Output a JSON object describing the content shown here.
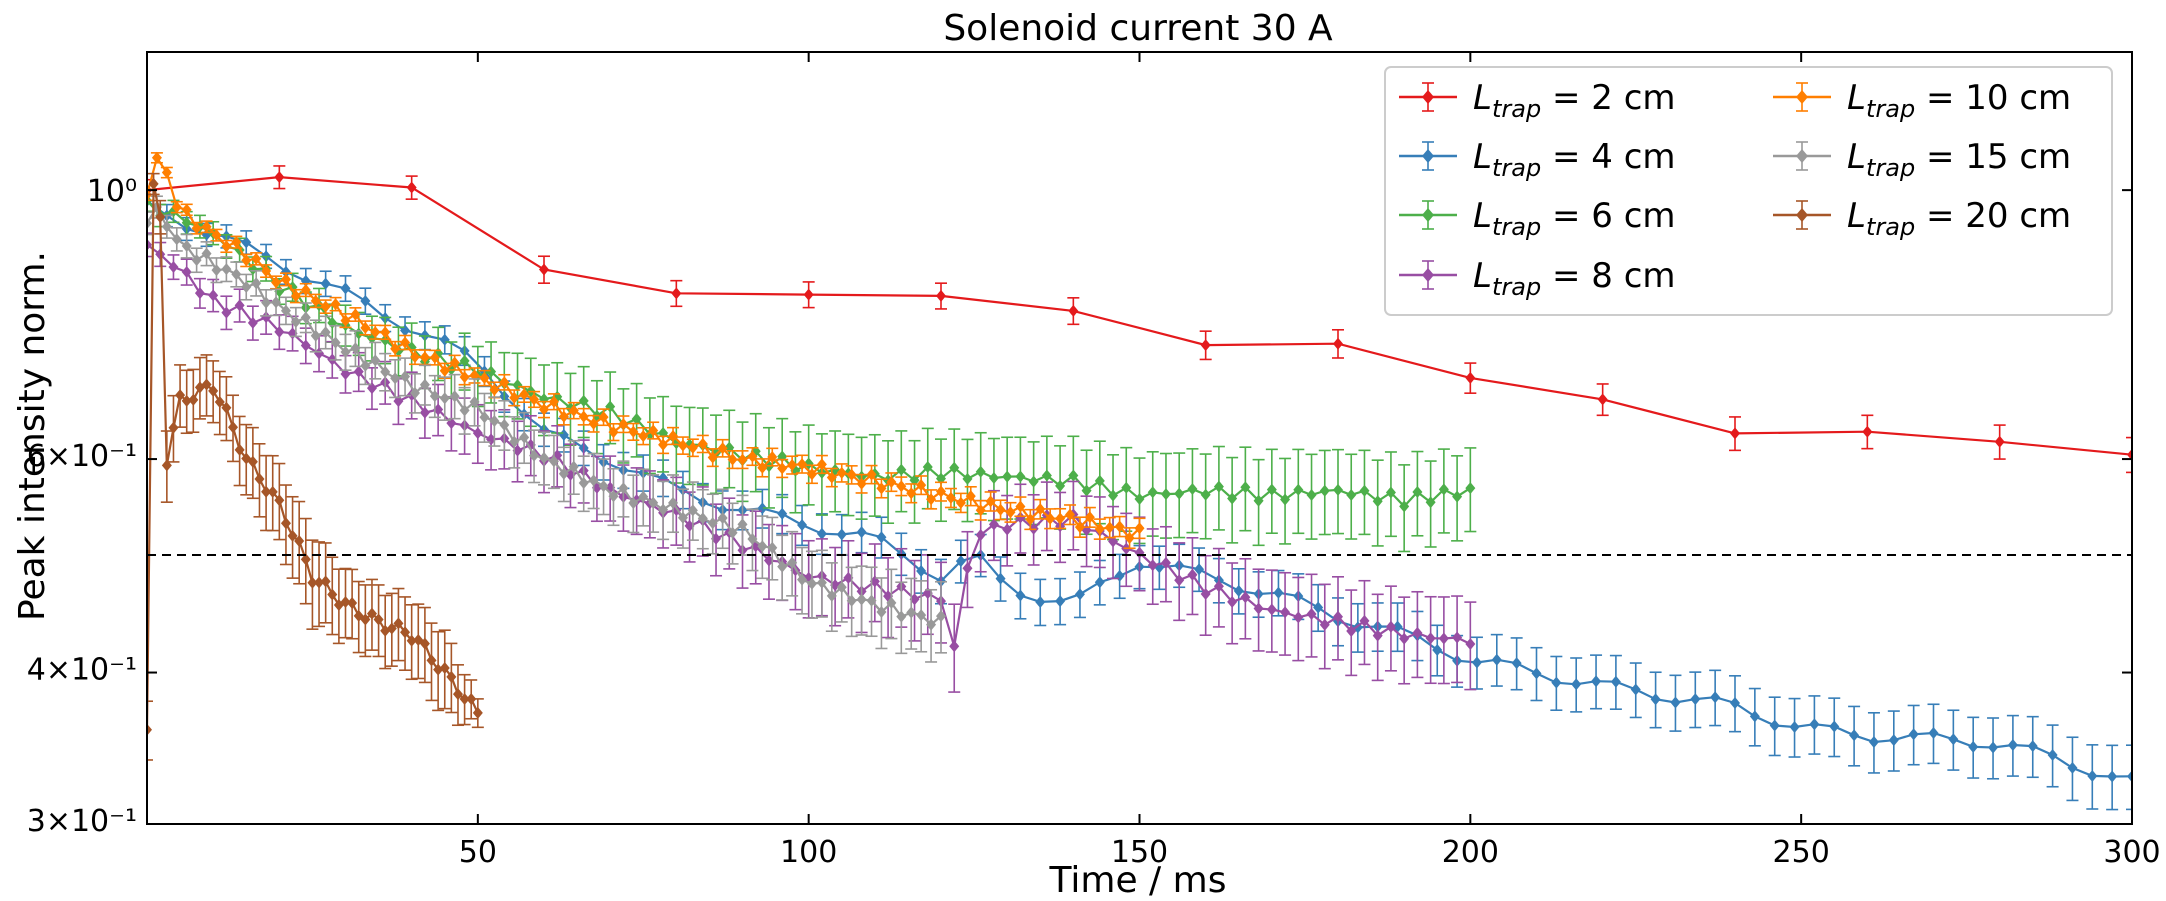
{
  "chart_data": {
    "type": "line",
    "title": "Solenoid current 30 A",
    "xlabel": "Time / ms",
    "ylabel": "Peak intensity norm.",
    "xlim": [
      0,
      300
    ],
    "ylim": [
      0.3,
      1.3
    ],
    "y_scale": "log",
    "x_ticks": [
      50,
      100,
      150,
      200,
      250,
      300
    ],
    "x_tick_labels": [
      "50",
      "100",
      "150",
      "200",
      "250",
      "300"
    ],
    "y_ticks": [
      0.3,
      0.4,
      0.6,
      1.0
    ],
    "y_tick_labels": [
      "3×10⁻¹",
      "4×10⁻¹",
      "6×10⁻¹",
      "10⁰"
    ],
    "reference_line": {
      "y": 0.5,
      "style": "dashed",
      "color": "#000000"
    },
    "legend": {
      "placement": "top-right",
      "columns": 2
    },
    "series": [
      {
        "name": "L_trap = 2 cm",
        "label_main": "L",
        "label_sub": "trap",
        "label_value": " = 2 cm",
        "color": "#e41a1c",
        "step": 20,
        "x": [
          0,
          20,
          40,
          60,
          80,
          100,
          120,
          140,
          160,
          180,
          200,
          220,
          240,
          260,
          280,
          300
        ],
        "y": [
          1.0,
          1.025,
          1.005,
          0.86,
          0.822,
          0.82,
          0.818,
          0.795,
          0.745,
          0.747,
          0.7,
          0.672,
          0.63,
          0.632,
          0.62,
          0.605
        ],
        "err": [
          0.02,
          0.022,
          0.022,
          0.022,
          0.02,
          0.02,
          0.02,
          0.02,
          0.02,
          0.02,
          0.02,
          0.02,
          0.02,
          0.02,
          0.02,
          0.02
        ]
      },
      {
        "name": "L_trap = 4 cm",
        "label_main": "L",
        "label_sub": "trap",
        "label_value": " = 4 cm",
        "color": "#377eb8",
        "step": 3,
        "x": [
          0,
          50,
          60,
          70,
          80,
          90,
          100,
          110,
          120,
          125,
          130,
          140,
          150,
          160,
          170,
          180,
          190,
          200,
          220,
          240,
          250,
          260,
          280,
          300
        ],
        "y": [
          0.97,
          0.72,
          0.63,
          0.6,
          0.565,
          0.545,
          0.53,
          0.515,
          0.48,
          0.5,
          0.47,
          0.455,
          0.495,
          0.48,
          0.465,
          0.445,
          0.43,
          0.41,
          0.39,
          0.375,
          0.36,
          0.355,
          0.35,
          0.325
        ],
        "err": [
          0.02,
          0.02,
          0.02,
          0.02,
          0.02,
          0.02,
          0.02,
          0.02,
          0.02,
          0.02,
          0.02,
          0.02,
          0.02,
          0.02,
          0.02,
          0.02,
          0.02,
          0.02,
          0.02,
          0.02,
          0.02,
          0.02,
          0.02,
          0.02
        ]
      },
      {
        "name": "L_trap = 6 cm",
        "label_main": "L",
        "label_sub": "trap",
        "label_value": " = 6 cm",
        "color": "#4daf4a",
        "step": 2,
        "x": [
          0,
          5,
          10,
          20,
          30,
          40,
          50,
          60,
          70,
          80,
          90,
          100,
          110,
          120,
          130,
          140,
          150,
          160,
          170,
          180,
          190,
          200
        ],
        "y": [
          0.97,
          0.95,
          0.92,
          0.835,
          0.77,
          0.735,
          0.71,
          0.675,
          0.655,
          0.62,
          0.605,
          0.59,
          0.58,
          0.585,
          0.58,
          0.575,
          0.56,
          0.565,
          0.56,
          0.565,
          0.555,
          0.565
        ],
        "err": [
          0.02,
          0.02,
          0.02,
          0.02,
          0.03,
          0.035,
          0.04,
          0.045,
          0.045,
          0.045,
          0.045,
          0.045,
          0.045,
          0.045,
          0.045,
          0.045,
          0.045,
          0.045,
          0.045,
          0.045,
          0.045,
          0.045
        ]
      },
      {
        "name": "L_trap = 8 cm",
        "label_main": "L",
        "label_sub": "trap",
        "label_value": " = 8 cm",
        "color": "#984ea3",
        "step": 2,
        "x": [
          0,
          5,
          10,
          20,
          30,
          40,
          50,
          60,
          70,
          80,
          90,
          100,
          110,
          120,
          122,
          125,
          130,
          140,
          150,
          160,
          170,
          180,
          190,
          200
        ],
        "y": [
          0.9,
          0.86,
          0.81,
          0.77,
          0.71,
          0.67,
          0.63,
          0.605,
          0.565,
          0.54,
          0.51,
          0.48,
          0.47,
          0.46,
          0.42,
          0.52,
          0.53,
          0.535,
          0.5,
          0.47,
          0.45,
          0.44,
          0.43,
          0.425
        ],
        "err": [
          0.02,
          0.02,
          0.025,
          0.025,
          0.025,
          0.03,
          0.035,
          0.035,
          0.035,
          0.035,
          0.035,
          0.035,
          0.035,
          0.035,
          0.035,
          0.035,
          0.035,
          0.035,
          0.035,
          0.035,
          0.035,
          0.035,
          0.035,
          0.035
        ]
      },
      {
        "name": "L_trap = 10 cm",
        "label_main": "L",
        "label_sub": "trap",
        "label_value": " = 10 cm",
        "color": "#ff7f00",
        "step": 1.5,
        "x": [
          0,
          1,
          3,
          5,
          10,
          15,
          20,
          30,
          40,
          50,
          60,
          70,
          80,
          90,
          100,
          110,
          120,
          130,
          140,
          150
        ],
        "y": [
          1.0,
          1.07,
          1.03,
          0.96,
          0.92,
          0.885,
          0.84,
          0.79,
          0.735,
          0.7,
          0.665,
          0.64,
          0.62,
          0.6,
          0.59,
          0.575,
          0.56,
          0.545,
          0.535,
          0.52
        ],
        "err": [
          0.01,
          0.01,
          0.01,
          0.01,
          0.01,
          0.01,
          0.01,
          0.01,
          0.01,
          0.01,
          0.01,
          0.01,
          0.01,
          0.01,
          0.01,
          0.01,
          0.01,
          0.01,
          0.01,
          0.01
        ]
      },
      {
        "name": "L_trap = 15 cm",
        "label_main": "L",
        "label_sub": "trap",
        "label_value": " = 15 cm",
        "color": "#999999",
        "step": 1.5,
        "x": [
          0,
          2,
          5,
          10,
          15,
          20,
          30,
          40,
          50,
          60,
          70,
          80,
          90,
          100,
          110,
          120
        ],
        "y": [
          0.95,
          0.96,
          0.9,
          0.87,
          0.84,
          0.8,
          0.74,
          0.69,
          0.66,
          0.6,
          0.565,
          0.545,
          0.525,
          0.475,
          0.455,
          0.44
        ],
        "err": [
          0.02,
          0.02,
          0.02,
          0.02,
          0.02,
          0.02,
          0.025,
          0.025,
          0.03,
          0.03,
          0.03,
          0.03,
          0.03,
          0.03,
          0.03,
          0.03
        ]
      },
      {
        "name": "L_trap = 20 cm",
        "label_main": "L",
        "label_sub": "trap",
        "label_value": " = 20 cm",
        "color": "#a65628",
        "step": 1,
        "x": [
          0,
          1,
          2,
          3,
          5,
          10,
          15,
          20,
          25,
          30,
          35,
          40,
          45,
          50
        ],
        "y": [
          0.36,
          1.0,
          0.95,
          0.6,
          0.67,
          0.69,
          0.6,
          0.55,
          0.48,
          0.455,
          0.44,
          0.43,
          0.4,
          0.37
        ],
        "err": [
          0.02,
          0.02,
          0.03,
          0.04,
          0.04,
          0.04,
          0.04,
          0.04,
          0.04,
          0.03,
          0.03,
          0.03,
          0.03,
          0.01
        ]
      }
    ]
  }
}
